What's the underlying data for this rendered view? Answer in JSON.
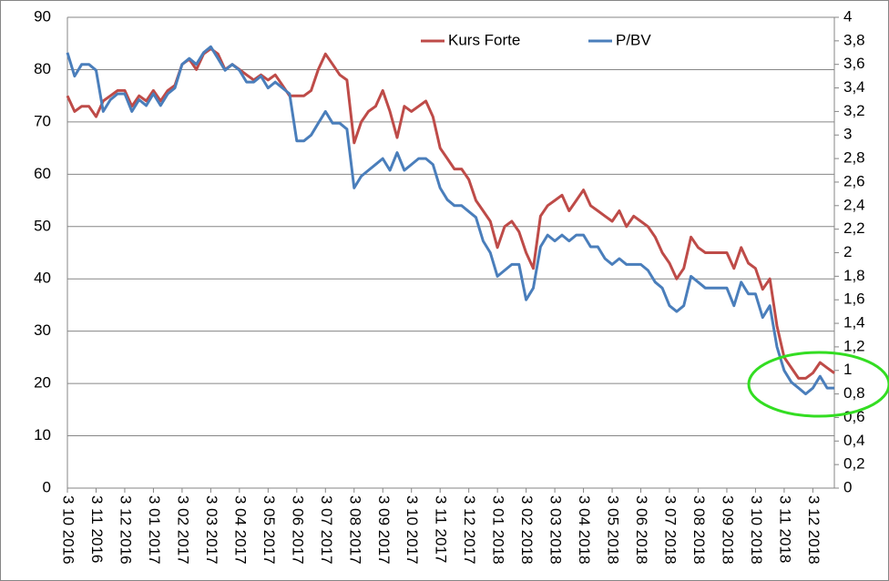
{
  "chart_data": {
    "type": "line",
    "categories": [
      "3 10 2016",
      null,
      null,
      null,
      "3 11 2016",
      null,
      null,
      null,
      "3 12 2016",
      null,
      null,
      null,
      "3 01 2017",
      null,
      null,
      null,
      "3 02 2017",
      null,
      null,
      null,
      "3 03 2017",
      null,
      null,
      null,
      "3 04 2017",
      null,
      null,
      null,
      "3 05 2017",
      null,
      null,
      null,
      "3 06 2017",
      null,
      null,
      null,
      "3 07 2017",
      null,
      null,
      null,
      "3 08 2017",
      null,
      null,
      null,
      "3 09 2017",
      null,
      null,
      null,
      "3 10 2017",
      null,
      null,
      null,
      "3 11 2017",
      null,
      null,
      null,
      "3 12 2017",
      null,
      null,
      null,
      "3 01 2018",
      null,
      null,
      null,
      "3 02 2018",
      null,
      null,
      null,
      "3 03 2018",
      null,
      null,
      null,
      "3 04 2018",
      null,
      null,
      null,
      "3 05 2018",
      null,
      null,
      null,
      "3 06 2018",
      null,
      null,
      null,
      "3 07 2018",
      null,
      null,
      null,
      "3 08 2018",
      null,
      null,
      null,
      "3 09 2018",
      null,
      null,
      null,
      "3 10 2018",
      null,
      null,
      null,
      "3 11 2018",
      null,
      null,
      null,
      "3 12 2018",
      null,
      null,
      null
    ],
    "series": [
      {
        "name": "Kurs Forte",
        "color": "#be4b48",
        "values": [
          75,
          72,
          73,
          73,
          71,
          74,
          75,
          76,
          76,
          73,
          75,
          74,
          76,
          74,
          76,
          77,
          81,
          82,
          80,
          83,
          84,
          83,
          80,
          81,
          80,
          79,
          78,
          79,
          78,
          79,
          77,
          75,
          75,
          75,
          76,
          80,
          83,
          81,
          79,
          78,
          66,
          70,
          72,
          73,
          76,
          72,
          67,
          73,
          72,
          73,
          74,
          71,
          65,
          63,
          61,
          61,
          59,
          55,
          53,
          51,
          46,
          50,
          51,
          49,
          45,
          42,
          52,
          54,
          55,
          56,
          53,
          55,
          57,
          54,
          53,
          52,
          51,
          53,
          50,
          52,
          51,
          50,
          48,
          45,
          43,
          40,
          42,
          48,
          46,
          45,
          45,
          45,
          45,
          42,
          46,
          43,
          42,
          38,
          40,
          31,
          25,
          23,
          21,
          21,
          22,
          24,
          23,
          22
        ]
      },
      {
        "name": "P/BV",
        "color": "#4a7ebb",
        "axis": "y2",
        "values": [
          3.7,
          3.5,
          3.6,
          3.6,
          3.55,
          3.2,
          3.3,
          3.35,
          3.35,
          3.2,
          3.3,
          3.25,
          3.35,
          3.25,
          3.35,
          3.4,
          3.6,
          3.65,
          3.6,
          3.7,
          3.75,
          3.65,
          3.55,
          3.6,
          3.55,
          3.45,
          3.45,
          3.5,
          3.4,
          3.45,
          3.4,
          3.35,
          2.95,
          2.95,
          3.0,
          3.1,
          3.2,
          3.1,
          3.1,
          3.05,
          2.55,
          2.65,
          2.7,
          2.75,
          2.8,
          2.7,
          2.85,
          2.7,
          2.75,
          2.8,
          2.8,
          2.75,
          2.55,
          2.45,
          2.4,
          2.4,
          2.35,
          2.3,
          2.1,
          2.0,
          1.8,
          1.85,
          1.9,
          1.9,
          1.6,
          1.7,
          2.05,
          2.15,
          2.1,
          2.15,
          2.1,
          2.15,
          2.15,
          2.05,
          2.05,
          1.95,
          1.9,
          1.95,
          1.9,
          1.9,
          1.9,
          1.85,
          1.75,
          1.7,
          1.55,
          1.5,
          1.55,
          1.8,
          1.75,
          1.7,
          1.7,
          1.7,
          1.7,
          1.55,
          1.75,
          1.65,
          1.65,
          1.45,
          1.55,
          1.2,
          1.0,
          0.9,
          0.85,
          0.8,
          0.85,
          0.95,
          0.85,
          0.85
        ]
      }
    ],
    "ylim": [
      0,
      90
    ],
    "yticks": [
      0,
      10,
      20,
      30,
      40,
      50,
      60,
      70,
      80,
      90
    ],
    "y2lim": [
      0,
      4
    ],
    "y2ticks": [
      0,
      {
        "value": 0.2,
        "label": "0,2"
      },
      {
        "value": 0.4,
        "label": "0,4"
      },
      {
        "value": 0.6,
        "label": "0,6"
      },
      {
        "value": 0.8,
        "label": "0,8"
      },
      1,
      {
        "value": 1.2,
        "label": "1,2"
      },
      {
        "value": 1.4,
        "label": "1,4"
      },
      {
        "value": 1.6,
        "label": "1,6"
      },
      {
        "value": 1.8,
        "label": "1,8"
      },
      2,
      {
        "value": 2.2,
        "label": "2,2"
      },
      {
        "value": 2.4,
        "label": "2,4"
      },
      {
        "value": 2.6,
        "label": "2,6"
      },
      {
        "value": 2.8,
        "label": "2,8"
      },
      3,
      {
        "value": 3.2,
        "label": "3,2"
      },
      {
        "value": 3.4,
        "label": "3,4"
      },
      {
        "value": 3.6,
        "label": "3,6"
      },
      {
        "value": 3.8,
        "label": "3,8"
      },
      4
    ],
    "grid": true
  }
}
